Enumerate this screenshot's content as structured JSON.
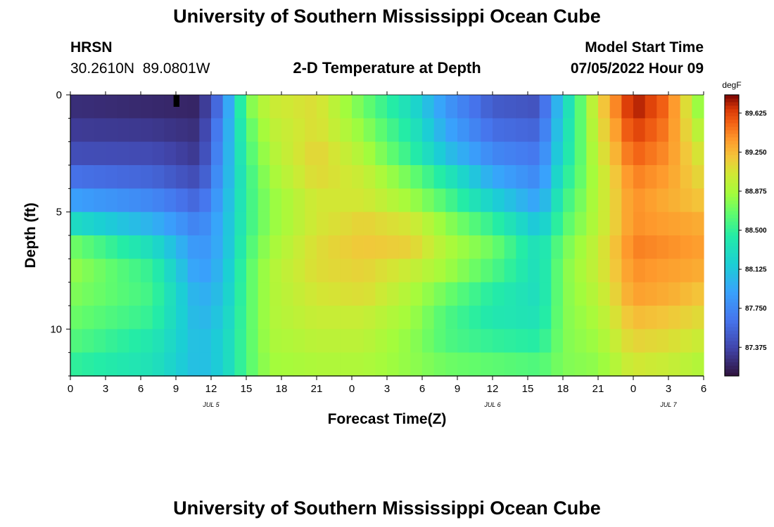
{
  "page": {
    "title": "University of Southern Mississippi Ocean Cube",
    "footer_title": "University of Southern Mississippi Ocean Cube",
    "station_name": "HRSN",
    "station_coords": "30.2610N  89.0801W",
    "plot_title": "2-D Temperature at Depth",
    "model_label": "Model Start Time",
    "model_time": "07/05/2022 Hour 09"
  },
  "chart_data": {
    "type": "heatmap",
    "title": "2-D Temperature at Depth",
    "xlabel": "Forecast Time(Z)",
    "ylabel": "Depth (ft)",
    "units": "degF",
    "x_hours": [
      0,
      3,
      6,
      9,
      12,
      15,
      18,
      21,
      24,
      27,
      30,
      33,
      36,
      39,
      42,
      45,
      48,
      51,
      54
    ],
    "x_tick_labels": [
      "0",
      "3",
      "6",
      "9",
      "12",
      "15",
      "18",
      "21",
      "0",
      "3",
      "6",
      "9",
      "12",
      "15",
      "18",
      "21",
      "0",
      "3",
      "6"
    ],
    "date_labels": [
      {
        "hour": 12,
        "text": "JUL 5"
      },
      {
        "hour": 36,
        "text": "JUL 6"
      },
      {
        "hour": 51,
        "text": "JUL 7"
      }
    ],
    "xlim": [
      0,
      54
    ],
    "ylim": [
      0,
      12
    ],
    "y_ticks": [
      0,
      5,
      10
    ],
    "y_tick_labels": [
      "0",
      "5",
      "10"
    ],
    "vmin": 87.1,
    "vmax": 89.8,
    "colorbar_ticks": [
      87.375,
      87.75,
      88.125,
      88.5,
      88.875,
      89.25,
      89.625
    ],
    "colorbar_tick_labels": [
      "87.375",
      "87.750",
      "88.125",
      "88.500",
      "88.875",
      "89.250",
      "89.625"
    ],
    "depth_bins_ft": [
      0.5,
      1.5,
      2.5,
      3.5,
      4.5,
      5.5,
      6.5,
      7.5,
      8.5,
      9.5,
      10.5,
      11.5,
      12.5
    ],
    "profile_times": [
      0,
      7,
      11,
      13,
      15,
      17,
      21,
      25,
      29,
      32,
      36,
      40,
      42,
      45,
      48,
      51,
      54
    ],
    "profiles": [
      [
        87.25,
        87.32,
        87.42,
        87.62,
        87.9,
        88.3,
        88.72,
        88.82,
        88.76,
        88.7,
        88.62,
        88.5,
        88.45
      ],
      [
        87.22,
        87.3,
        87.4,
        87.55,
        87.75,
        88.0,
        88.3,
        88.5,
        88.55,
        88.5,
        88.4,
        88.35,
        88.3
      ],
      [
        87.2,
        87.25,
        87.3,
        87.4,
        87.55,
        87.7,
        87.8,
        87.85,
        87.95,
        88.0,
        88.05,
        88.05,
        88.05
      ],
      [
        87.7,
        87.8,
        87.85,
        87.9,
        87.95,
        88.0,
        88.0,
        88.05,
        88.1,
        88.15,
        88.2,
        88.2,
        88.25
      ],
      [
        88.7,
        88.6,
        88.55,
        88.5,
        88.5,
        88.5,
        88.55,
        88.6,
        88.6,
        88.6,
        88.6,
        88.6,
        88.55
      ],
      [
        89.0,
        88.95,
        88.9,
        88.85,
        88.8,
        88.8,
        88.85,
        88.9,
        88.9,
        88.9,
        88.88,
        88.85,
        88.8
      ],
      [
        89.1,
        89.1,
        89.15,
        89.12,
        89.05,
        89.05,
        89.1,
        89.1,
        89.05,
        89.0,
        88.95,
        88.9,
        88.85
      ],
      [
        88.7,
        88.8,
        88.9,
        89.0,
        89.05,
        89.15,
        89.2,
        89.15,
        89.1,
        89.0,
        88.95,
        88.9,
        88.85
      ],
      [
        88.3,
        88.4,
        88.5,
        88.7,
        88.85,
        89.05,
        89.15,
        89.0,
        88.9,
        88.85,
        88.8,
        88.8,
        88.8
      ],
      [
        87.85,
        87.95,
        88.1,
        88.4,
        88.6,
        88.8,
        88.9,
        88.85,
        88.7,
        88.6,
        88.6,
        88.7,
        88.8
      ],
      [
        87.5,
        87.6,
        87.75,
        87.95,
        88.2,
        88.5,
        88.7,
        88.6,
        88.45,
        88.4,
        88.5,
        88.65,
        88.75
      ],
      [
        87.45,
        87.55,
        87.65,
        87.75,
        87.9,
        88.1,
        88.3,
        88.3,
        88.3,
        88.35,
        88.45,
        88.6,
        88.7
      ],
      [
        88.2,
        88.25,
        88.3,
        88.4,
        88.5,
        88.6,
        88.7,
        88.75,
        88.75,
        88.75,
        88.75,
        88.75,
        88.7
      ],
      [
        89.1,
        89.05,
        89.0,
        88.95,
        88.95,
        88.95,
        89.0,
        89.0,
        88.95,
        88.9,
        88.85,
        88.8,
        88.75
      ],
      [
        89.75,
        89.65,
        89.55,
        89.45,
        89.4,
        89.4,
        89.45,
        89.4,
        89.35,
        89.25,
        89.15,
        89.05,
        88.95
      ],
      [
        89.5,
        89.45,
        89.4,
        89.35,
        89.3,
        89.35,
        89.4,
        89.35,
        89.3,
        89.2,
        89.1,
        89.0,
        88.95
      ],
      [
        88.7,
        88.85,
        89.0,
        89.1,
        89.2,
        89.3,
        89.35,
        89.3,
        89.2,
        89.1,
        89.0,
        88.9,
        88.8
      ]
    ]
  }
}
